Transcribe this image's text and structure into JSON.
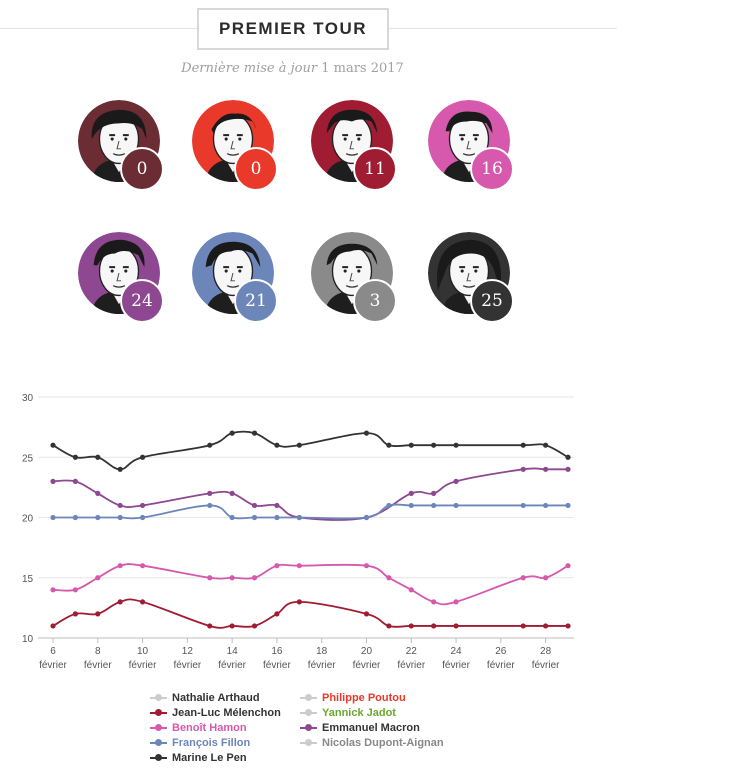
{
  "header": {
    "title": "PREMIER TOUR",
    "update_label": "Dernière mise à jour",
    "update_date": "1 mars 2017"
  },
  "candidates": [
    {
      "name": "Nathalie Arthaud",
      "score": "0",
      "color": "#6b2c33"
    },
    {
      "name": "Philippe Poutou",
      "score": "0",
      "color": "#e8392a"
    },
    {
      "name": "Jean-Luc Mélenchon",
      "score": "11",
      "color": "#a01c32"
    },
    {
      "name": "Benoît Hamon",
      "score": "16",
      "color": "#d659ad"
    },
    {
      "name": "Emmanuel Macron",
      "score": "24",
      "color": "#8e4791"
    },
    {
      "name": "François Fillon",
      "score": "21",
      "color": "#6d86ba"
    },
    {
      "name": "Nicolas Dupont-Aignan",
      "score": "3",
      "color": "#8a8a8a"
    },
    {
      "name": "Marine Le Pen",
      "score": "25",
      "color": "#333333"
    }
  ],
  "chart_data": {
    "type": "line",
    "ylim": [
      10,
      30
    ],
    "yticks": [
      10,
      15,
      20,
      25,
      30
    ],
    "xlim": [
      6,
      29
    ],
    "xticks": [
      {
        "day": 6,
        "label": "6",
        "sub": "février"
      },
      {
        "day": 8,
        "label": "8",
        "sub": "février"
      },
      {
        "day": 10,
        "label": "10",
        "sub": "février"
      },
      {
        "day": 12,
        "label": "12",
        "sub": "février"
      },
      {
        "day": 14,
        "label": "14",
        "sub": "février"
      },
      {
        "day": 16,
        "label": "16",
        "sub": "février"
      },
      {
        "day": 18,
        "label": "18",
        "sub": "février"
      },
      {
        "day": 20,
        "label": "20",
        "sub": "février"
      },
      {
        "day": 22,
        "label": "22",
        "sub": "février"
      },
      {
        "day": 24,
        "label": "24",
        "sub": "février"
      },
      {
        "day": 26,
        "label": "26",
        "sub": "février"
      },
      {
        "day": 28,
        "label": "28",
        "sub": "février"
      }
    ],
    "series": [
      {
        "name": "Marine Le Pen",
        "color": "#333333",
        "points": [
          [
            6,
            26
          ],
          [
            7,
            25
          ],
          [
            8,
            25
          ],
          [
            9,
            24
          ],
          [
            10,
            25
          ],
          [
            13,
            26
          ],
          [
            14,
            27
          ],
          [
            15,
            27
          ],
          [
            16,
            26
          ],
          [
            17,
            26
          ],
          [
            20,
            27
          ],
          [
            21,
            26
          ],
          [
            22,
            26
          ],
          [
            23,
            26
          ],
          [
            24,
            26
          ],
          [
            27,
            26
          ],
          [
            28,
            26
          ],
          [
            29,
            25
          ]
        ]
      },
      {
        "name": "Emmanuel Macron",
        "color": "#8e4791",
        "points": [
          [
            6,
            23
          ],
          [
            7,
            23
          ],
          [
            8,
            22
          ],
          [
            9,
            21
          ],
          [
            10,
            21
          ],
          [
            13,
            22
          ],
          [
            14,
            22
          ],
          [
            15,
            21
          ],
          [
            16,
            21
          ],
          [
            17,
            20
          ],
          [
            20,
            20
          ],
          [
            22,
            22
          ],
          [
            23,
            22
          ],
          [
            24,
            23
          ],
          [
            27,
            24
          ],
          [
            28,
            24
          ],
          [
            29,
            24
          ]
        ]
      },
      {
        "name": "François Fillon",
        "color": "#6d86ba",
        "points": [
          [
            6,
            20
          ],
          [
            7,
            20
          ],
          [
            8,
            20
          ],
          [
            9,
            20
          ],
          [
            10,
            20
          ],
          [
            13,
            21
          ],
          [
            14,
            20
          ],
          [
            15,
            20
          ],
          [
            16,
            20
          ],
          [
            17,
            20
          ],
          [
            20,
            20
          ],
          [
            21,
            21
          ],
          [
            22,
            21
          ],
          [
            23,
            21
          ],
          [
            24,
            21
          ],
          [
            27,
            21
          ],
          [
            28,
            21
          ],
          [
            29,
            21
          ]
        ]
      },
      {
        "name": "Benoît Hamon",
        "color": "#d659ad",
        "points": [
          [
            6,
            14
          ],
          [
            7,
            14
          ],
          [
            8,
            15
          ],
          [
            9,
            16
          ],
          [
            10,
            16
          ],
          [
            13,
            15
          ],
          [
            14,
            15
          ],
          [
            15,
            15
          ],
          [
            16,
            16
          ],
          [
            17,
            16
          ],
          [
            20,
            16
          ],
          [
            21,
            15
          ],
          [
            22,
            14
          ],
          [
            23,
            13
          ],
          [
            24,
            13
          ],
          [
            27,
            15
          ],
          [
            28,
            15
          ],
          [
            29,
            16
          ]
        ]
      },
      {
        "name": "Jean-Luc Mélenchon",
        "color": "#a01c32",
        "points": [
          [
            6,
            11
          ],
          [
            7,
            12
          ],
          [
            8,
            12
          ],
          [
            9,
            13
          ],
          [
            10,
            13
          ],
          [
            13,
            11
          ],
          [
            14,
            11
          ],
          [
            15,
            11
          ],
          [
            16,
            12
          ],
          [
            17,
            13
          ],
          [
            20,
            12
          ],
          [
            21,
            11
          ],
          [
            22,
            11
          ],
          [
            23,
            11
          ],
          [
            24,
            11
          ],
          [
            27,
            11
          ],
          [
            28,
            11
          ],
          [
            29,
            11
          ]
        ]
      }
    ]
  },
  "legend": [
    {
      "name": "Nathalie Arthaud",
      "line_color": "#cccccc",
      "dot_color": "#cccccc",
      "text_color": "#333333"
    },
    {
      "name": "Philippe Poutou",
      "line_color": "#cccccc",
      "dot_color": "#cccccc",
      "text_color": "#e8392a"
    },
    {
      "name": "Jean-Luc Mélenchon",
      "line_color": "#a01c32",
      "dot_color": "#a01c32",
      "text_color": "#333333"
    },
    {
      "name": "Yannick Jadot",
      "line_color": "#cccccc",
      "dot_color": "#cccccc",
      "text_color": "#6aa82f"
    },
    {
      "name": "Benoît Hamon",
      "line_color": "#d659ad",
      "dot_color": "#d659ad",
      "text_color": "#d659ad"
    },
    {
      "name": "Emmanuel Macron",
      "line_color": "#8e4791",
      "dot_color": "#8e4791",
      "text_color": "#333333"
    },
    {
      "name": "François Fillon",
      "line_color": "#6d86ba",
      "dot_color": "#6d86ba",
      "text_color": "#6d86ba"
    },
    {
      "name": "Nicolas Dupont-Aignan",
      "line_color": "#cccccc",
      "dot_color": "#cccccc",
      "text_color": "#888888"
    },
    {
      "name": "Marine Le Pen",
      "line_color": "#333333",
      "dot_color": "#333333",
      "text_color": "#333333"
    }
  ]
}
